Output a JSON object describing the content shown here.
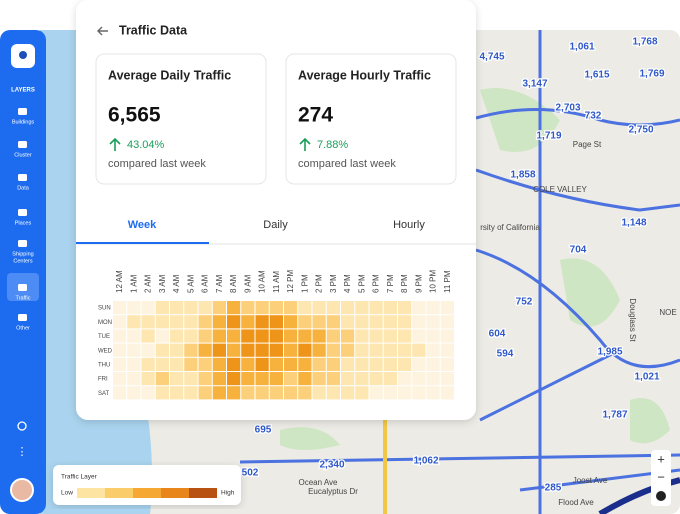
{
  "header": {
    "title": "Traffic Data"
  },
  "stats": [
    {
      "title": "Average Daily Traffic",
      "value": "6,565",
      "change": "43.04%",
      "note": "compared last week"
    },
    {
      "title": "Average Hourly Traffic",
      "value": "274",
      "change": "7.88%",
      "note": "compared last week"
    }
  ],
  "tabs": [
    "Week",
    "Daily",
    "Hourly"
  ],
  "heatmap": {
    "hours": [
      "12 AM",
      "1 AM",
      "2 AM",
      "3 AM",
      "4 AM",
      "5 AM",
      "6 AM",
      "7 AM",
      "8 AM",
      "9 AM",
      "10 AM",
      "11 AM",
      "12 PM",
      "1 PM",
      "2 PM",
      "3 PM",
      "4 PM",
      "5 PM",
      "6 PM",
      "7 PM",
      "8 PM",
      "9 PM",
      "10 PM",
      "11 PM"
    ],
    "days": [
      "SUN",
      "MON",
      "TUE",
      "WED",
      "THU",
      "FRI",
      "SAT"
    ],
    "colors": [
      "#fdf3de",
      "#fde6b0",
      "#fcd07a",
      "#f7b23e",
      "#ee9418"
    ],
    "levels": [
      [
        0,
        0,
        0,
        1,
        1,
        1,
        1,
        2,
        3,
        2,
        2,
        2,
        2,
        1,
        1,
        1,
        1,
        1,
        1,
        1,
        1,
        0,
        0,
        0
      ],
      [
        0,
        1,
        1,
        1,
        1,
        1,
        2,
        3,
        4,
        3,
        4,
        4,
        3,
        2,
        2,
        2,
        1,
        1,
        1,
        1,
        1,
        0,
        0,
        0
      ],
      [
        0,
        0,
        1,
        0,
        1,
        1,
        2,
        3,
        3,
        4,
        4,
        4,
        3,
        3,
        3,
        2,
        2,
        1,
        1,
        1,
        1,
        0,
        0,
        0
      ],
      [
        0,
        0,
        0,
        1,
        1,
        2,
        3,
        4,
        3,
        4,
        4,
        4,
        3,
        4,
        3,
        2,
        2,
        1,
        1,
        1,
        1,
        1,
        0,
        0
      ],
      [
        0,
        0,
        1,
        1,
        1,
        2,
        2,
        3,
        4,
        3,
        4,
        3,
        3,
        3,
        2,
        2,
        1,
        1,
        1,
        1,
        1,
        0,
        0,
        0
      ],
      [
        0,
        0,
        1,
        2,
        1,
        1,
        2,
        3,
        4,
        3,
        3,
        3,
        2,
        3,
        2,
        2,
        1,
        1,
        1,
        1,
        0,
        0,
        0,
        0
      ],
      [
        0,
        0,
        0,
        1,
        1,
        1,
        2,
        3,
        3,
        2,
        2,
        2,
        2,
        2,
        1,
        1,
        1,
        1,
        0,
        0,
        0,
        0,
        0,
        0
      ]
    ]
  },
  "sidebar": {
    "heading": "LAYERS",
    "items": [
      "Buildings",
      "Cluster",
      "Data",
      "Places",
      "Shipping",
      "Centers",
      "Traffic",
      "Other"
    ]
  },
  "legend": {
    "title": "Traffic Layer",
    "low": "Low",
    "high": "High",
    "colors": [
      "#fde4a0",
      "#fbcd6a",
      "#f5a933",
      "#e8861c",
      "#b85212"
    ]
  },
  "map": {
    "labels": [
      "4,745",
      "1,061",
      "1,768",
      "3,147",
      "1,615",
      "1,769",
      "2,703",
      "732",
      "1,719",
      "2,750",
      "Page St",
      "1,858",
      "COLE VALLEY",
      "1,148",
      "rsity of California",
      "704",
      "752",
      "604",
      "594",
      "1,985",
      "NOE",
      "Douglass St",
      "1,021",
      "1,787",
      "695",
      "502",
      "2,340",
      "1,062",
      "Ocean Ave",
      "Eucalyptus Dr",
      "Joost Ave",
      "285",
      "Flood Ave"
    ],
    "controls": [
      "+",
      "−"
    ]
  }
}
